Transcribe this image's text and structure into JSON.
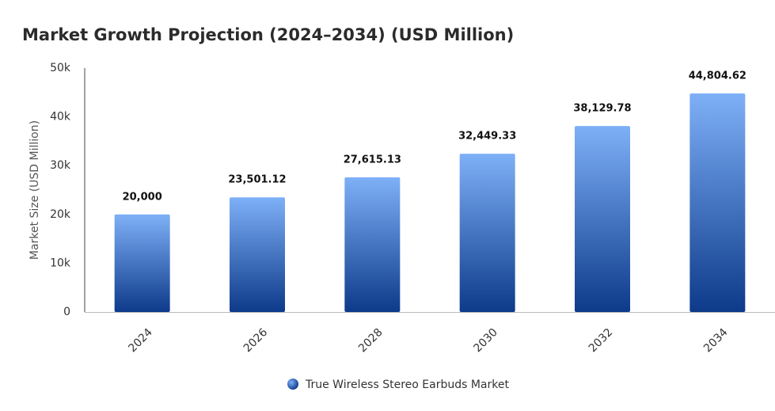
{
  "chart_data": {
    "type": "bar",
    "title": "Market Growth Projection (2024–2034) (USD Million)",
    "y_label": "Market Size (USD Million)",
    "categories": [
      "2024",
      "2026",
      "2028",
      "2030",
      "2032",
      "2034"
    ],
    "series": [
      {
        "name": "True Wireless Stereo Earbuds Market",
        "color": "#0d3a8a",
        "values": [
          20000,
          23501.12,
          27615.13,
          32449.33,
          38129.78,
          44804.62
        ],
        "value_labels": [
          "20,000",
          "23,501.12",
          "27,615.13",
          "32,449.33",
          "38,129.78",
          "44,804.62"
        ]
      }
    ],
    "ylim": [
      0,
      50000
    ],
    "yticks": [
      0,
      {
        "value": 10000,
        "label": "10k"
      },
      {
        "value": 20000,
        "label": "20k"
      },
      {
        "value": 30000,
        "label": "30k"
      },
      {
        "value": 40000,
        "label": "40k"
      },
      {
        "value": 50000,
        "label": "50k"
      }
    ],
    "grid": false
  }
}
